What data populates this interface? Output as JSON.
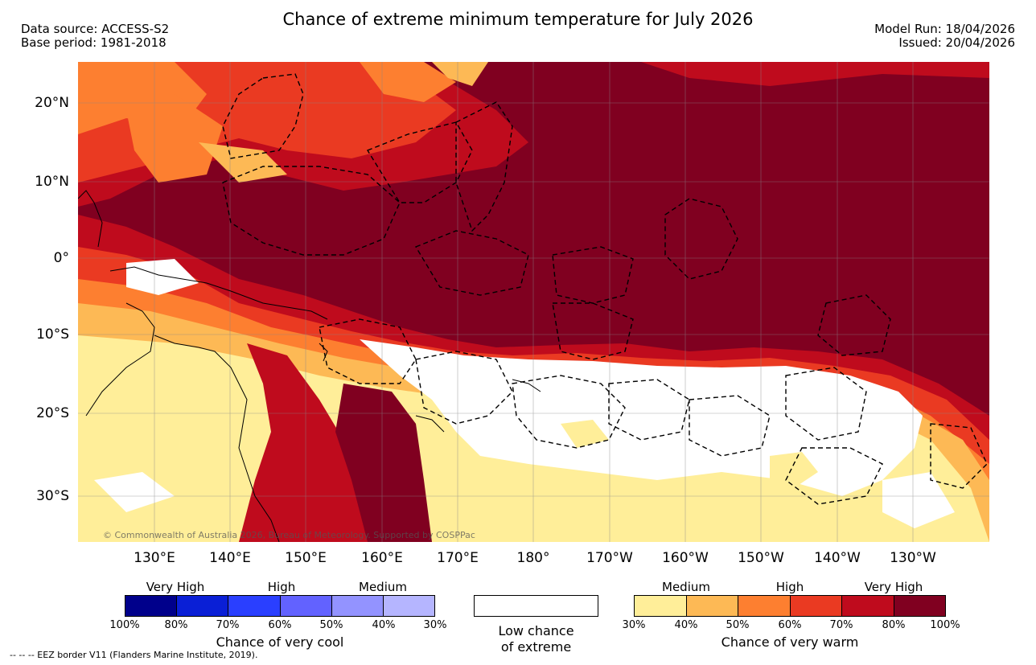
{
  "title": "Chance of extreme minimum temperature for July 2026",
  "meta_left": [
    "Data source: ACCESS-S2",
    "Base period: 1981-2018"
  ],
  "meta_right": [
    "Model Run: 18/04/2026",
    "Issued: 20/04/2026"
  ],
  "lat_labels": [
    "20°N",
    "10°N",
    "0°",
    "10°S",
    "20°S",
    "30°S"
  ],
  "lon_labels": [
    "130°E",
    "140°E",
    "150°E",
    "160°E",
    "170°E",
    "180°",
    "170°W",
    "160°W",
    "150°W",
    "140°W",
    "130°W"
  ],
  "copyright": "© Commonwealth of Australia 2026, Bureau of Meteorology. Supported by COSPPac",
  "legend_cool": {
    "headings": [
      "Very High",
      "High",
      "Medium"
    ],
    "ticks": [
      "100%",
      "80%",
      "70%",
      "60%",
      "50%",
      "40%",
      "30%"
    ],
    "title": "Chance of very cool",
    "colors": [
      "#00008b",
      "#0a1fd6",
      "#2a3fff",
      "#6262ff",
      "#9393ff",
      "#b5b5ff"
    ]
  },
  "legend_low": {
    "line1": "Low chance",
    "line2": "of extreme",
    "color": "#ffffff"
  },
  "legend_warm": {
    "headings": [
      "Medium",
      "High",
      "Very High"
    ],
    "ticks": [
      "30%",
      "40%",
      "50%",
      "60%",
      "70%",
      "80%",
      "100%"
    ],
    "title": "Chance of very warm",
    "colors": [
      "#ffee99",
      "#fdb955",
      "#fd7f30",
      "#ea3a22",
      "#bf0b1d",
      "#800020"
    ]
  },
  "footer": "-- -- -- EEZ border V11 (Flanders Marine Institute, 2019)."
}
